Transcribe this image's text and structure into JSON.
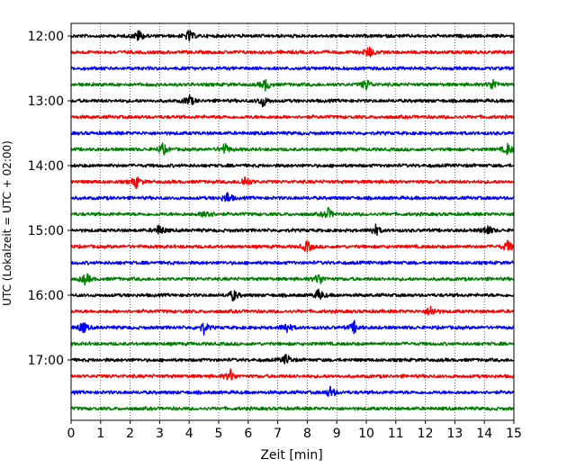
{
  "chart_data": {
    "type": "line",
    "subtype": "helicorder",
    "xlabel": "Zeit  [min]",
    "ylabel": "UTC (Lokalzeit = UTC + 02:00)",
    "xlim": [
      0,
      15
    ],
    "x_ticks": [
      "0",
      "1",
      "2",
      "3",
      "4",
      "5",
      "6",
      "7",
      "8",
      "9",
      "10",
      "11",
      "12",
      "13",
      "14",
      "15"
    ],
    "vertical_grid": "dotted at each minute",
    "row_interval_minutes": 15,
    "row_colors": [
      "#000000",
      "#ff0000",
      "#0000ff",
      "#008000"
    ],
    "y_tick_labels": [
      "12:00",
      "13:00",
      "14:00",
      "15:00",
      "16:00",
      "17:00"
    ],
    "rows": [
      {
        "start": "12:00",
        "color": "#000000",
        "events_min": [
          2.3,
          4.0
        ]
      },
      {
        "start": "12:15",
        "color": "#ff0000",
        "events_min": [
          10.1
        ]
      },
      {
        "start": "12:30",
        "color": "#0000ff",
        "events_min": []
      },
      {
        "start": "12:45",
        "color": "#008000",
        "events_min": [
          6.6,
          10.0,
          14.3
        ]
      },
      {
        "start": "13:00",
        "color": "#000000",
        "events_min": [
          4.0,
          6.5
        ]
      },
      {
        "start": "13:15",
        "color": "#ff0000",
        "events_min": []
      },
      {
        "start": "13:30",
        "color": "#0000ff",
        "events_min": []
      },
      {
        "start": "13:45",
        "color": "#008000",
        "events_min": [
          3.1,
          5.2,
          14.8
        ]
      },
      {
        "start": "14:00",
        "color": "#000000",
        "events_min": []
      },
      {
        "start": "14:15",
        "color": "#ff0000",
        "events_min": [
          2.2,
          5.9
        ]
      },
      {
        "start": "14:30",
        "color": "#0000ff",
        "events_min": [
          5.3
        ]
      },
      {
        "start": "14:45",
        "color": "#008000",
        "events_min": [
          4.6,
          8.7
        ]
      },
      {
        "start": "15:00",
        "color": "#000000",
        "events_min": [
          3.0,
          10.3,
          14.1
        ]
      },
      {
        "start": "15:15",
        "color": "#ff0000",
        "events_min": [
          8.0,
          14.8
        ]
      },
      {
        "start": "15:30",
        "color": "#0000ff",
        "events_min": []
      },
      {
        "start": "15:45",
        "color": "#008000",
        "events_min": [
          0.5,
          8.4
        ]
      },
      {
        "start": "16:00",
        "color": "#000000",
        "events_min": [
          5.5,
          8.4
        ]
      },
      {
        "start": "16:15",
        "color": "#ff0000",
        "events_min": [
          12.2
        ]
      },
      {
        "start": "16:30",
        "color": "#0000ff",
        "events_min": [
          0.4,
          4.5,
          7.3,
          9.6
        ]
      },
      {
        "start": "16:45",
        "color": "#008000",
        "events_min": []
      },
      {
        "start": "17:00",
        "color": "#000000",
        "events_min": [
          7.3
        ]
      },
      {
        "start": "17:15",
        "color": "#ff0000",
        "events_min": [
          5.4
        ]
      },
      {
        "start": "17:30",
        "color": "#0000ff",
        "events_min": [
          8.8
        ]
      },
      {
        "start": "17:45",
        "color": "#008000",
        "events_min": []
      }
    ]
  }
}
